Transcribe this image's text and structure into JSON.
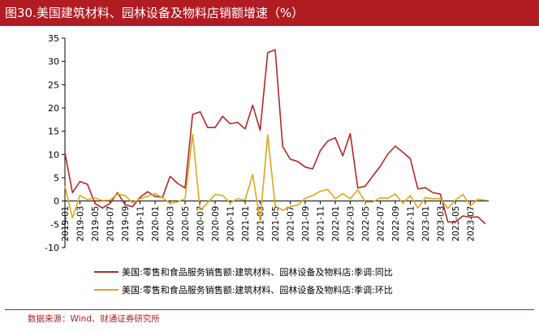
{
  "title": "图30.美国建筑材料、园林设备及物料店销额增速（%）",
  "source": "数据来源：Wind、财通证券研究所",
  "colors": {
    "title_bg": "#b01c22",
    "yoy": "#b5262b",
    "mom": "#e0a61a",
    "axis": "#000000"
  },
  "chart_data": {
    "type": "line",
    "ylim": [
      -10,
      35
    ],
    "yticks": [
      -10,
      -5,
      0,
      5,
      10,
      15,
      20,
      25,
      30,
      35
    ],
    "xticks": [
      "2019-01",
      "2019-03",
      "2019-05",
      "2019-07",
      "2019-09",
      "2019-11",
      "2020-01",
      "2020-03",
      "2020-05",
      "2020-07",
      "2020-09",
      "2020-11",
      "2021-01",
      "2021-03",
      "2021-05",
      "2021-07",
      "2021-09",
      "2021-11",
      "2022-01",
      "2022-03",
      "2022-05",
      "2022-07",
      "2022-09",
      "2022-11",
      "2023-01",
      "2023-03",
      "2023-05",
      "2023-07"
    ],
    "series": [
      {
        "name": "美国:零售和食品服务销售额:建筑材料、园林设备及物料店:季调:同比",
        "values": [
          10.4,
          1.8,
          4.2,
          3.6,
          -0.5,
          -1.5,
          -0.5,
          1.8,
          -0.8,
          -1.2,
          0.8,
          2.0,
          1.0,
          0.8,
          5.3,
          3.8,
          2.8,
          18.6,
          19.2,
          15.8,
          15.8,
          18.2,
          16.6,
          16.9,
          15.5,
          20.6,
          15.2,
          31.9,
          32.5,
          11.7,
          9.0,
          8.5,
          7.3,
          6.9,
          10.8,
          12.9,
          13.6,
          9.7,
          14.5,
          2.8,
          3.2,
          5.4,
          7.5,
          10.1,
          11.8,
          10.5,
          9.1,
          2.6,
          2.9,
          1.8,
          1.5,
          -4.5,
          -4.5,
          -3.2,
          -3.5,
          -3.4,
          -4.9
        ]
      },
      {
        "name": "美国:零售和食品服务销售额:建筑材料、园林设备及物料店:季调:环比",
        "values": [
          3.2,
          -3.6,
          1.2,
          0.3,
          0.7,
          0.1,
          0.2,
          1.5,
          1.2,
          -0.4,
          0.5,
          1.0,
          1.6,
          0.7,
          -0.5,
          -0.2,
          0.5,
          14.3,
          -2.0,
          -0.4,
          1.4,
          1.2,
          -0.4,
          0.5,
          0.2,
          5.7,
          -4.3,
          14.2,
          -1.0,
          -2.0,
          -1.2,
          -0.9,
          0.6,
          1.2,
          2.1,
          2.5,
          0.5,
          1.6,
          0.5,
          2.4,
          -0.2,
          -0.2,
          0.7,
          0.6,
          1.5,
          -0.5,
          1.2,
          -1.5,
          0.7,
          0.5,
          0.5,
          -1.6,
          0.2,
          1.4,
          -1.0,
          0.4,
          0.2
        ]
      }
    ]
  }
}
